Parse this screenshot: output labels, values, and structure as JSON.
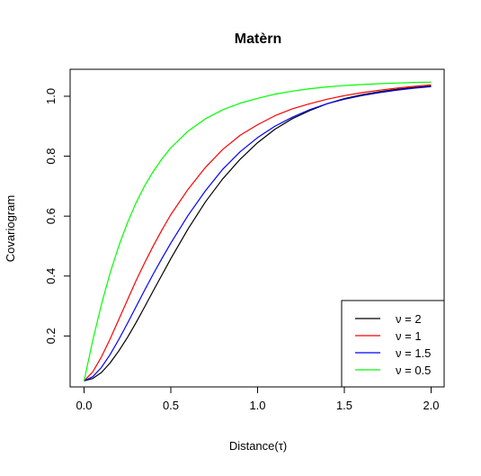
{
  "chart_data": {
    "type": "line",
    "title": "Matèrn",
    "xlabel": "Distance(τ)",
    "ylabel": "Covariogram",
    "xlim": [
      0,
      2
    ],
    "ylim": [
      0.03,
      1.09
    ],
    "x_ticks": [
      {
        "value": 0,
        "label": "0.0"
      },
      {
        "value": 0.5,
        "label": "0.5"
      },
      {
        "value": 1,
        "label": "1.0"
      },
      {
        "value": 1.5,
        "label": "1.5"
      },
      {
        "value": 2,
        "label": "2.0"
      }
    ],
    "y_ticks": [
      {
        "value": 0.2,
        "label": "0.2"
      },
      {
        "value": 0.4,
        "label": "0.4"
      },
      {
        "value": 0.6,
        "label": "0.6"
      },
      {
        "value": 0.8,
        "label": "0.8"
      },
      {
        "value": 1.0,
        "label": "1.0"
      }
    ],
    "legend_position": "bottom-right",
    "series": [
      {
        "name": "ν = 2",
        "color": "#000000",
        "x": [
          0,
          0.05,
          0.1,
          0.15,
          0.2,
          0.25,
          0.3,
          0.35,
          0.4,
          0.45,
          0.5,
          0.6,
          0.7,
          0.8,
          0.9,
          1.0,
          1.1,
          1.2,
          1.3,
          1.4,
          1.5,
          1.6,
          1.7,
          1.8,
          1.9,
          2.0
        ],
        "y": [
          0.05,
          0.058,
          0.078,
          0.11,
          0.15,
          0.195,
          0.245,
          0.298,
          0.352,
          0.405,
          0.458,
          0.558,
          0.648,
          0.725,
          0.79,
          0.845,
          0.89,
          0.925,
          0.952,
          0.975,
          0.992,
          1.005,
          1.015,
          1.023,
          1.029,
          1.034
        ]
      },
      {
        "name": "ν = 1",
        "color": "#ff0000",
        "x": [
          0,
          0.05,
          0.1,
          0.15,
          0.2,
          0.25,
          0.3,
          0.35,
          0.4,
          0.45,
          0.5,
          0.6,
          0.7,
          0.8,
          0.9,
          1.0,
          1.1,
          1.2,
          1.3,
          1.4,
          1.5,
          1.6,
          1.7,
          1.8,
          1.9,
          2.0
        ],
        "y": [
          0.05,
          0.08,
          0.13,
          0.19,
          0.255,
          0.32,
          0.385,
          0.445,
          0.502,
          0.555,
          0.605,
          0.69,
          0.763,
          0.823,
          0.87,
          0.905,
          0.935,
          0.958,
          0.975,
          0.99,
          1.002,
          1.012,
          1.02,
          1.027,
          1.033,
          1.038
        ]
      },
      {
        "name": "ν = 1.5",
        "color": "#0000ff",
        "x": [
          0,
          0.05,
          0.1,
          0.15,
          0.2,
          0.25,
          0.3,
          0.35,
          0.4,
          0.45,
          0.5,
          0.6,
          0.7,
          0.8,
          0.9,
          1.0,
          1.1,
          1.2,
          1.3,
          1.4,
          1.5,
          1.6,
          1.7,
          1.8,
          1.9,
          2.0
        ],
        "y": [
          0.05,
          0.064,
          0.095,
          0.138,
          0.188,
          0.242,
          0.298,
          0.354,
          0.408,
          0.46,
          0.51,
          0.603,
          0.685,
          0.757,
          0.815,
          0.862,
          0.9,
          0.93,
          0.955,
          0.975,
          0.99,
          1.002,
          1.012,
          1.02,
          1.027,
          1.032
        ]
      },
      {
        "name": "ν = 0.5",
        "color": "#00ff00",
        "x": [
          0,
          0.05,
          0.1,
          0.15,
          0.2,
          0.25,
          0.3,
          0.35,
          0.4,
          0.45,
          0.5,
          0.6,
          0.7,
          0.8,
          0.9,
          1.0,
          1.1,
          1.2,
          1.3,
          1.4,
          1.5,
          1.6,
          1.7,
          1.8,
          1.9,
          2.0
        ],
        "y": [
          0.05,
          0.185,
          0.305,
          0.41,
          0.5,
          0.578,
          0.645,
          0.702,
          0.75,
          0.792,
          0.828,
          0.884,
          0.925,
          0.955,
          0.977,
          0.993,
          1.007,
          1.017,
          1.025,
          1.031,
          1.036,
          1.039,
          1.042,
          1.044,
          1.046,
          1.047
        ]
      }
    ]
  }
}
